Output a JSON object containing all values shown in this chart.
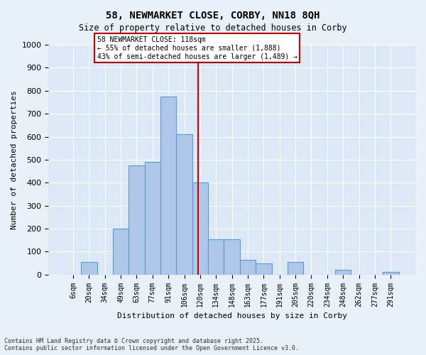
{
  "title1": "58, NEWMARKET CLOSE, CORBY, NN18 8QH",
  "title2": "Size of property relative to detached houses in Corby",
  "xlabel": "Distribution of detached houses by size in Corby",
  "ylabel": "Number of detached properties",
  "bar_labels": [
    "6sqm",
    "20sqm",
    "34sqm",
    "49sqm",
    "63sqm",
    "77sqm",
    "91sqm",
    "106sqm",
    "120sqm",
    "134sqm",
    "148sqm",
    "163sqm",
    "177sqm",
    "191sqm",
    "205sqm",
    "220sqm",
    "234sqm",
    "248sqm",
    "262sqm",
    "277sqm",
    "291sqm"
  ],
  "bar_values": [
    0,
    55,
    0,
    200,
    475,
    490,
    775,
    610,
    400,
    155,
    155,
    65,
    50,
    0,
    55,
    0,
    0,
    20,
    0,
    0,
    10
  ],
  "bar_color": "#aec6e8",
  "bar_edge_color": "#5b9bd5",
  "property_line_x": 118,
  "property_line_color": "#cc0000",
  "annotation_text": "58 NEWMARKET CLOSE: 118sqm\n← 55% of detached houses are smaller (1,888)\n43% of semi-detached houses are larger (1,489) →",
  "annotation_box_color": "#ffffff",
  "annotation_box_edge_color": "#cc0000",
  "ylim": [
    0,
    1000
  ],
  "yticks": [
    0,
    100,
    200,
    300,
    400,
    500,
    600,
    700,
    800,
    900,
    1000
  ],
  "footnote": "Contains HM Land Registry data © Crown copyright and database right 2025.\nContains public sector information licensed under the Open Government Licence v3.0.",
  "background_color": "#e8f0f8",
  "plot_background": "#dce8f5"
}
